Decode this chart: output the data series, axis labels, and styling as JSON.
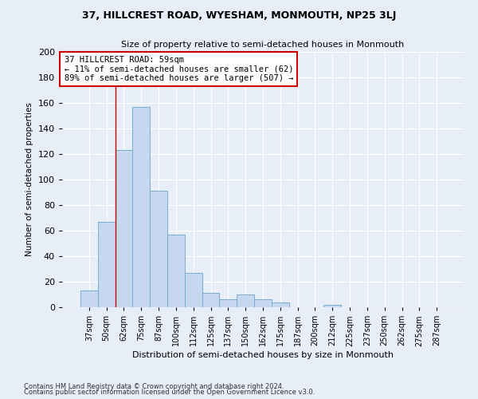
{
  "title": "37, HILLCREST ROAD, WYESHAM, MONMOUTH, NP25 3LJ",
  "subtitle": "Size of property relative to semi-detached houses in Monmouth",
  "xlabel": "Distribution of semi-detached houses by size in Monmouth",
  "ylabel": "Number of semi-detached properties",
  "bar_labels": [
    "37sqm",
    "50sqm",
    "62sqm",
    "75sqm",
    "87sqm",
    "100sqm",
    "112sqm",
    "125sqm",
    "137sqm",
    "150sqm",
    "162sqm",
    "175sqm",
    "187sqm",
    "200sqm",
    "212sqm",
    "225sqm",
    "237sqm",
    "250sqm",
    "262sqm",
    "275sqm",
    "287sqm"
  ],
  "bar_values": [
    13,
    67,
    123,
    157,
    91,
    57,
    27,
    11,
    6,
    10,
    6,
    4,
    0,
    0,
    2,
    0,
    0,
    0,
    0,
    0,
    0
  ],
  "bar_color": "#c5d8f0",
  "bar_edge_color": "#7aadd4",
  "vline_x": 1.5,
  "vline_color": "#cc0000",
  "annotation_title": "37 HILLCREST ROAD: 59sqm",
  "annotation_line1": "← 11% of semi-detached houses are smaller (62)",
  "annotation_line2": "89% of semi-detached houses are larger (507) →",
  "annotation_box_color": "#ffffff",
  "annotation_box_edge": "#cc0000",
  "ylim": [
    0,
    200
  ],
  "yticks": [
    0,
    20,
    40,
    60,
    80,
    100,
    120,
    140,
    160,
    180,
    200
  ],
  "footer1": "Contains HM Land Registry data © Crown copyright and database right 2024.",
  "footer2": "Contains public sector information licensed under the Open Government Licence v3.0.",
  "bg_color": "#e8eef8",
  "grid_color": "#ffffff"
}
